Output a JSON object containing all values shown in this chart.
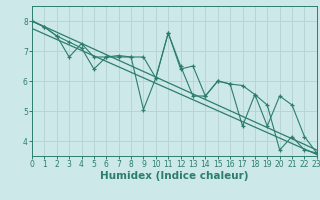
{
  "title": "",
  "xlabel": "Humidex (Indice chaleur)",
  "ylabel": "",
  "xlim": [
    0,
    23
  ],
  "ylim": [
    3.5,
    8.5
  ],
  "yticks": [
    4,
    5,
    6,
    7,
    8
  ],
  "xticks": [
    0,
    1,
    2,
    3,
    4,
    5,
    6,
    7,
    8,
    9,
    10,
    11,
    12,
    13,
    14,
    15,
    16,
    17,
    18,
    19,
    20,
    21,
    22,
    23
  ],
  "line1_x": [
    0,
    1,
    2,
    3,
    4,
    5,
    6,
    7,
    8,
    9,
    10,
    11,
    12,
    13,
    14,
    15,
    16,
    17,
    18,
    19,
    20,
    21,
    22,
    23
  ],
  "line1_y": [
    8.0,
    7.8,
    7.5,
    6.8,
    7.25,
    6.8,
    6.8,
    6.8,
    6.8,
    5.05,
    6.1,
    7.6,
    6.5,
    5.5,
    5.5,
    6.0,
    5.9,
    4.5,
    5.55,
    5.2,
    3.7,
    4.15,
    3.7,
    3.6
  ],
  "line2_x": [
    0,
    1,
    2,
    3,
    4,
    5,
    6,
    7,
    8,
    9,
    10,
    11,
    12,
    13,
    14,
    15,
    16,
    17,
    18,
    19,
    20,
    21,
    22,
    23
  ],
  "line2_y": [
    8.0,
    7.8,
    7.5,
    7.3,
    7.1,
    6.4,
    6.8,
    6.85,
    6.8,
    6.8,
    6.1,
    7.6,
    6.4,
    6.5,
    5.5,
    6.0,
    5.9,
    5.85,
    5.55,
    4.5,
    5.5,
    5.2,
    4.15,
    3.6
  ],
  "trend1_x": [
    0,
    23
  ],
  "trend1_y": [
    8.0,
    3.7
  ],
  "trend2_x": [
    0,
    23
  ],
  "trend2_y": [
    7.75,
    3.55
  ],
  "line_color": "#2d7d6e",
  "bg_color": "#cce8e8",
  "grid_color": "#b8d4d4",
  "tick_fontsize": 5.5,
  "label_fontsize": 7.5
}
